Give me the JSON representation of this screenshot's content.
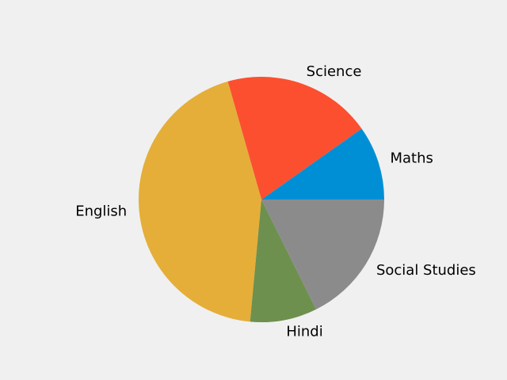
{
  "chart_data": {
    "type": "pie",
    "title": "",
    "categories": [
      "Maths",
      "Science",
      "English",
      "Hindi",
      "Social Studies"
    ],
    "values": [
      10,
      20,
      45,
      9,
      18
    ],
    "colors": [
      "#008fd5",
      "#fc4f30",
      "#e5ae38",
      "#6d904f",
      "#8b8b8b"
    ],
    "start_angle_deg": 0,
    "direction": "counterclockwise",
    "legend": "none"
  },
  "page": {
    "background": "#f0f0f0"
  }
}
